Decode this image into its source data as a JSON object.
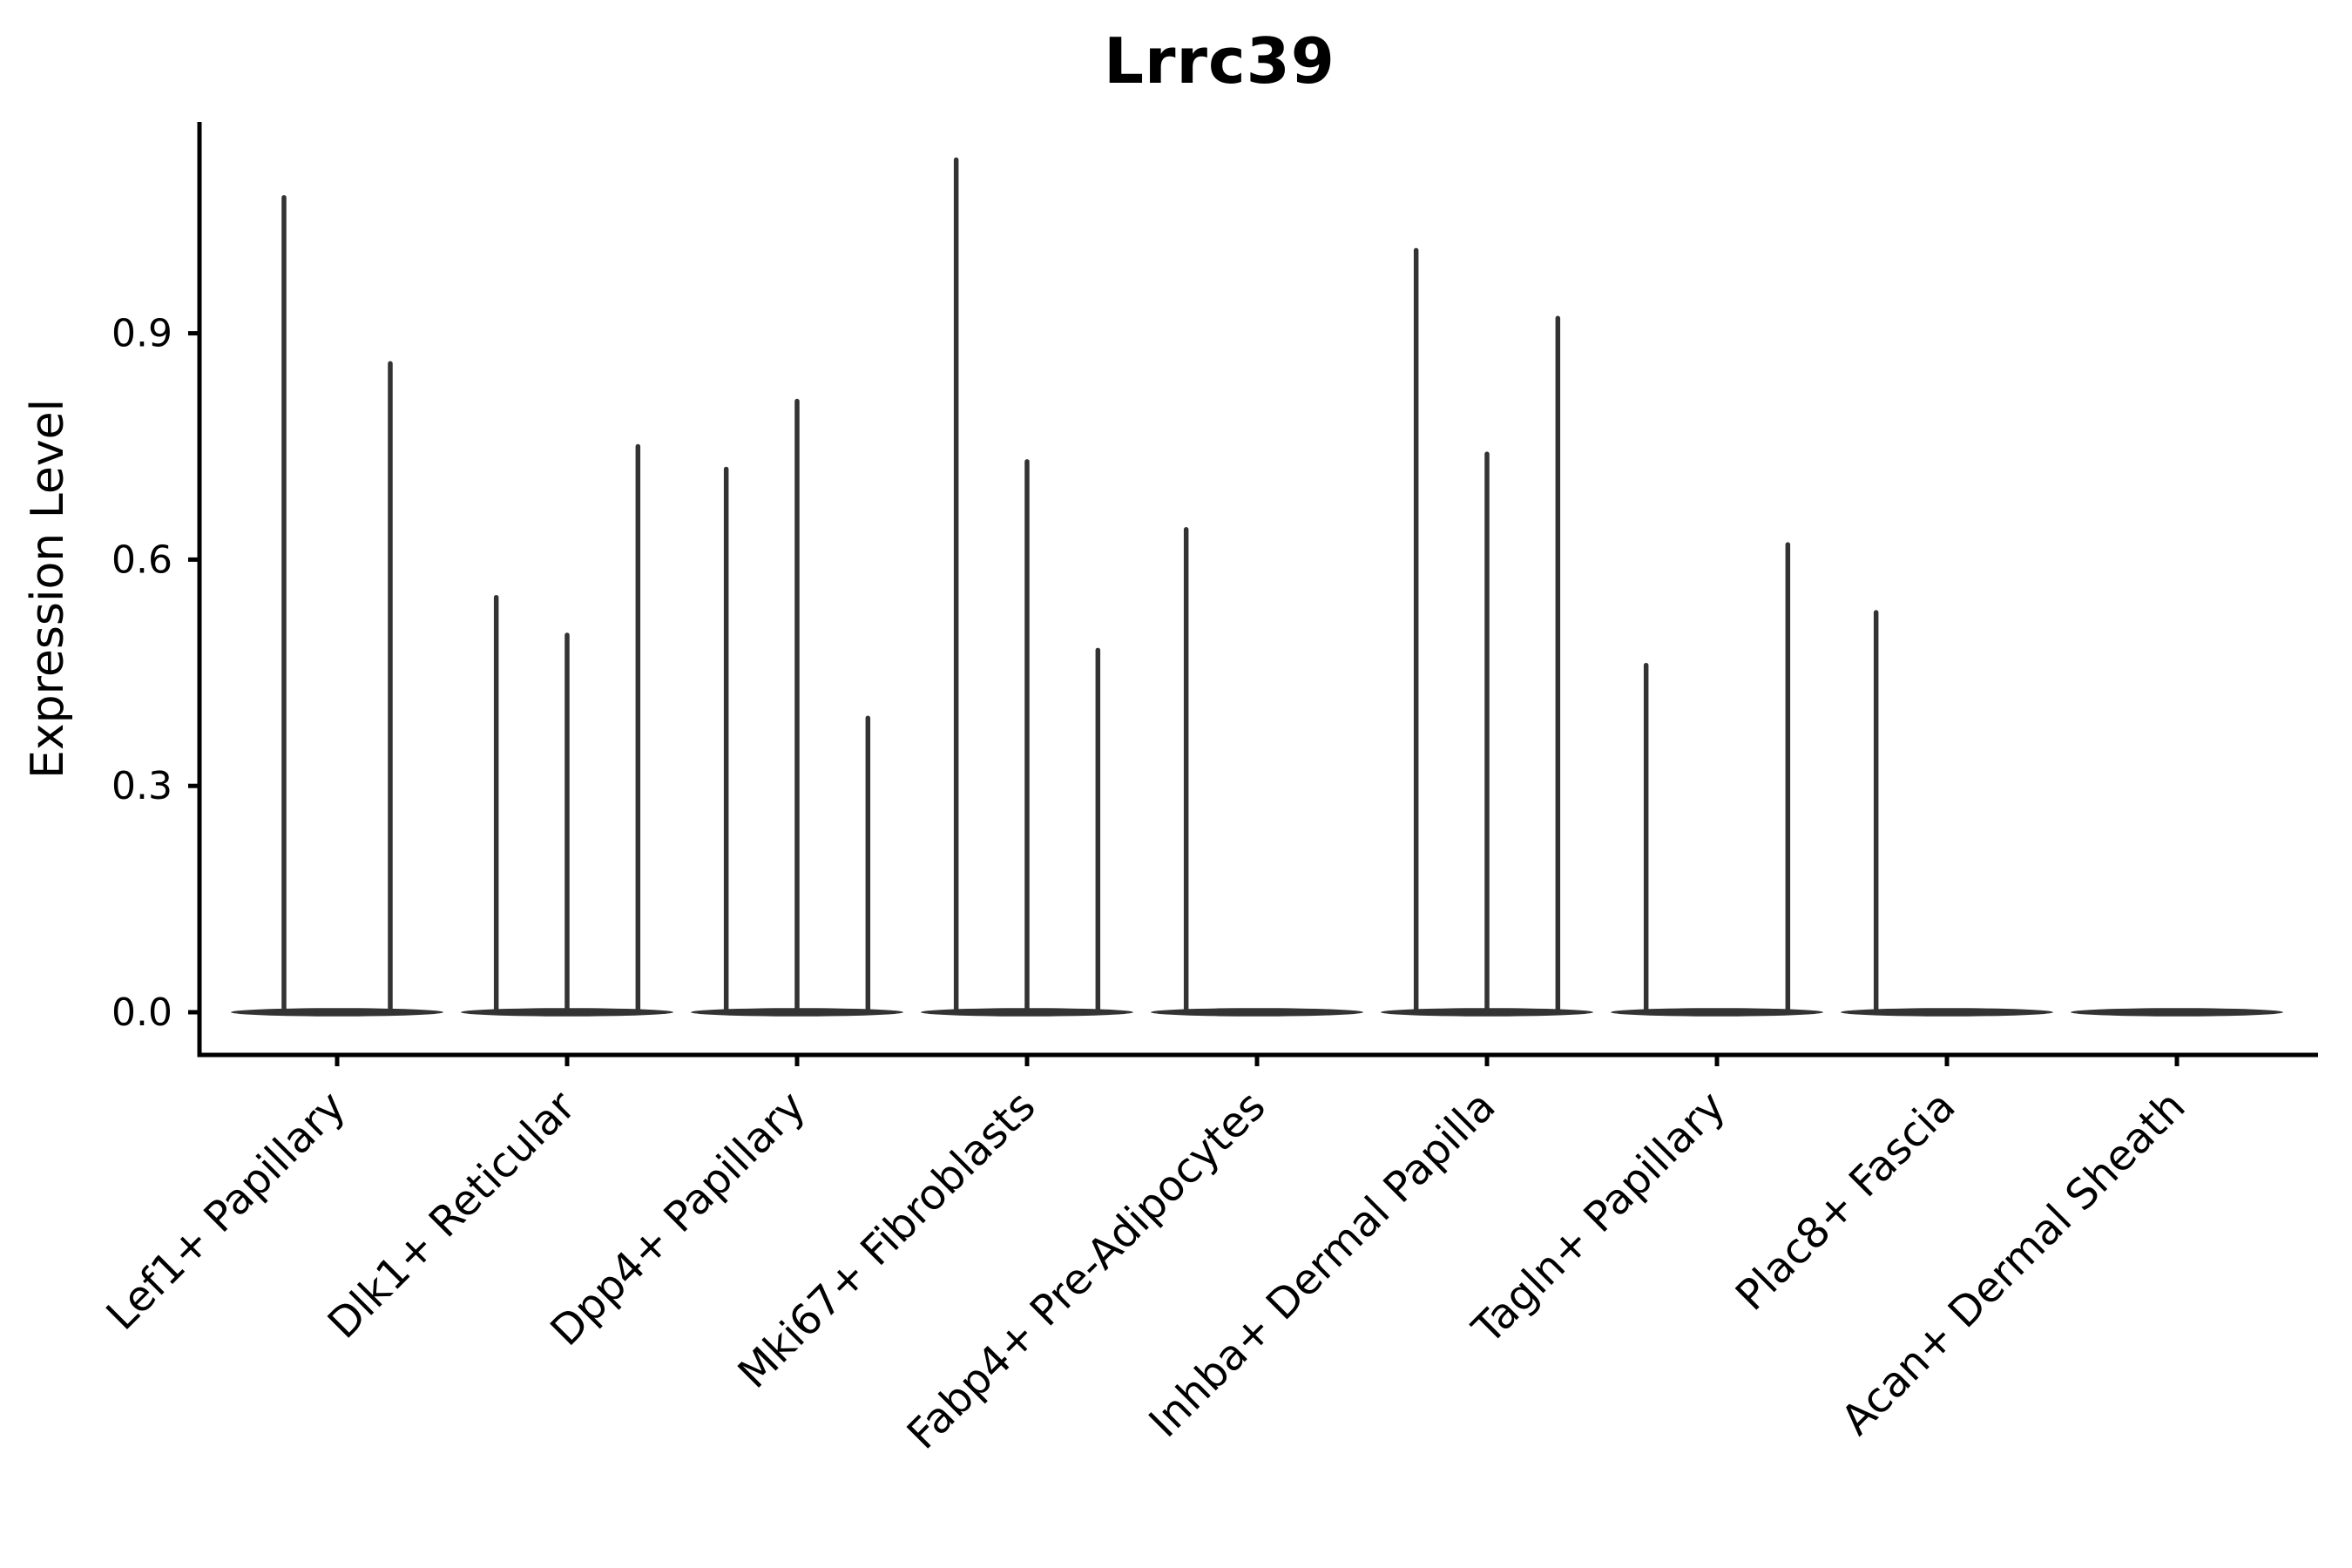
{
  "chart_data": {
    "type": "violin",
    "title": "Lrrc39",
    "ylabel": "Expression Level",
    "xlabel": "",
    "yticks": [
      0.0,
      0.3,
      0.6,
      0.9
    ],
    "ytick_labels": [
      "0.0",
      "0.3",
      "0.6",
      "0.9"
    ],
    "ylim": [
      -0.06,
      1.18
    ],
    "grid": false,
    "legend": "none",
    "note": "Sparse single-cell violin plot: each category shows a flat violin base at 0 with thin density spikes; spikes listed as slot index within category and peak expression value",
    "categories": [
      {
        "label": "Lef1+ Papillary",
        "n_slots": 2,
        "spikes": [
          {
            "slot": 0,
            "value": 1.08
          },
          {
            "slot": 1,
            "value": 0.86
          }
        ]
      },
      {
        "label": "Dlk1+ Reticular",
        "n_slots": 3,
        "spikes": [
          {
            "slot": 0,
            "value": 0.55
          },
          {
            "slot": 1,
            "value": 0.5
          },
          {
            "slot": 2,
            "value": 0.75
          }
        ]
      },
      {
        "label": "Dpp4+ Papillary",
        "n_slots": 3,
        "spikes": [
          {
            "slot": 0,
            "value": 0.72
          },
          {
            "slot": 1,
            "value": 0.81
          },
          {
            "slot": 2,
            "value": 0.39
          }
        ]
      },
      {
        "label": "Mki67+ Fibroblasts",
        "n_slots": 3,
        "spikes": [
          {
            "slot": 0,
            "value": 1.13
          },
          {
            "slot": 1,
            "value": 0.73
          },
          {
            "slot": 2,
            "value": 0.48
          }
        ]
      },
      {
        "label": "Fabp4+ Pre-Adipocytes",
        "n_slots": 3,
        "spikes": [
          {
            "slot": 0,
            "value": 0.64
          }
        ]
      },
      {
        "label": "Inhba+ Dermal Papilla",
        "n_slots": 3,
        "spikes": [
          {
            "slot": 0,
            "value": 1.01
          },
          {
            "slot": 1,
            "value": 0.74
          },
          {
            "slot": 2,
            "value": 0.92
          }
        ]
      },
      {
        "label": "Tagln+ Papillary",
        "n_slots": 3,
        "spikes": [
          {
            "slot": 0,
            "value": 0.46
          },
          {
            "slot": 2,
            "value": 0.62
          }
        ]
      },
      {
        "label": "Plac8+ Fascia",
        "n_slots": 3,
        "spikes": [
          {
            "slot": 0,
            "value": 0.53
          }
        ]
      },
      {
        "label": "Acan+ Dermal Sheath",
        "n_slots": 3,
        "spikes": []
      }
    ],
    "colors": {
      "violin": "#333333",
      "axis": "#000000",
      "text": "#000000",
      "background": "#ffffff"
    }
  }
}
